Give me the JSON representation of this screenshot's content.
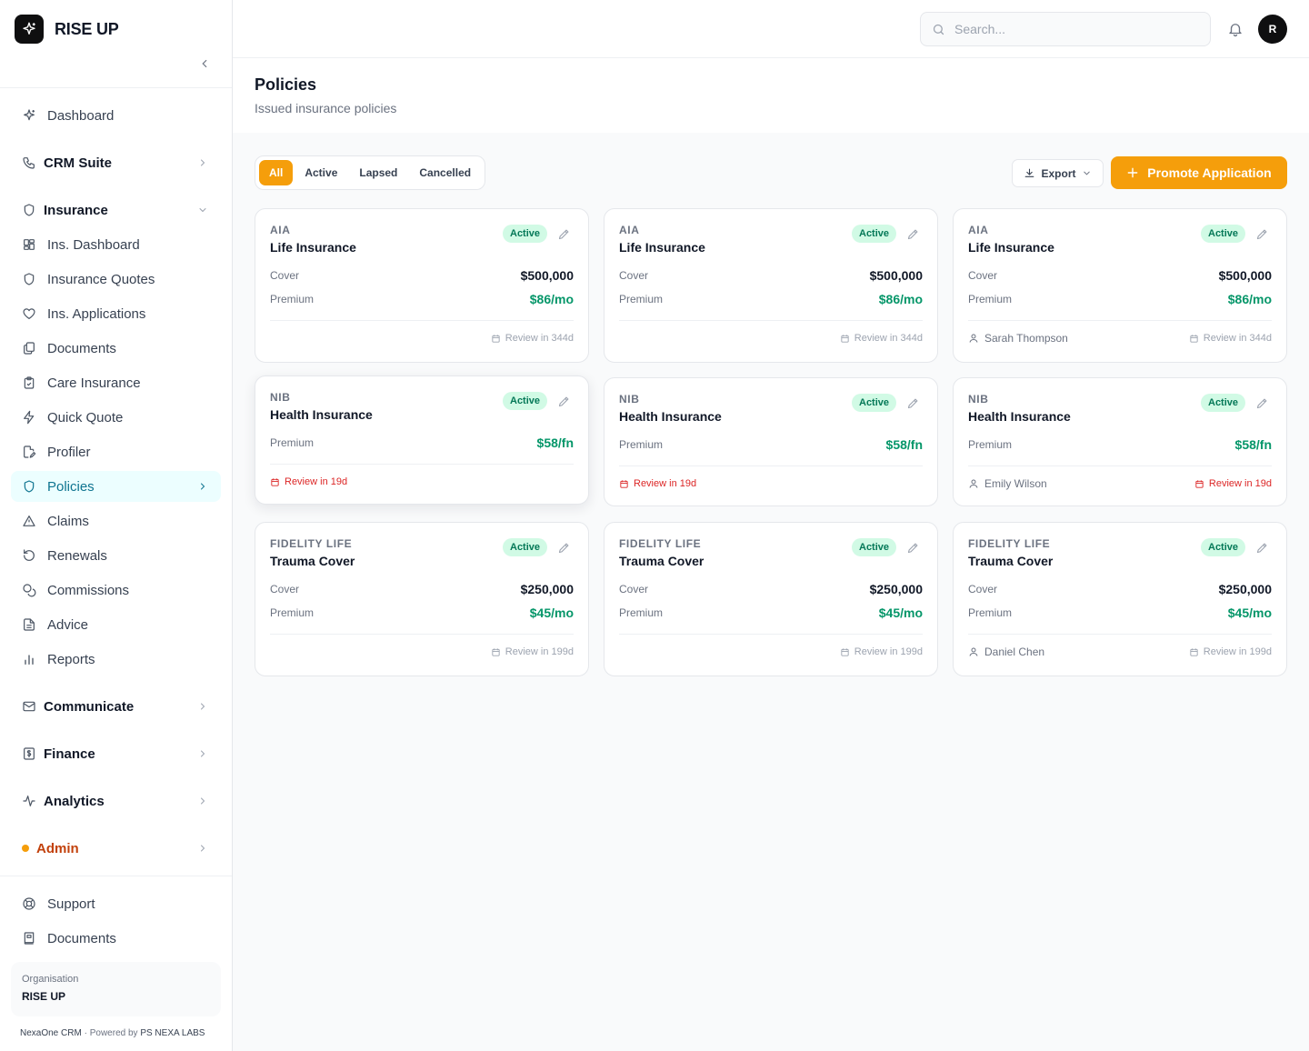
{
  "brand": {
    "name": "RISE UP"
  },
  "sidebar": {
    "items": [
      {
        "label": "Dashboard",
        "icon": "sparkles-icon"
      },
      {
        "label": "CRM Suite",
        "icon": "phone-icon"
      },
      {
        "label": "Insurance",
        "icon": "shield-icon"
      },
      {
        "label": "Ins. Dashboard",
        "icon": "grid-icon"
      },
      {
        "label": "Insurance Quotes",
        "icon": "shield-icon"
      },
      {
        "label": "Ins. Applications",
        "icon": "heart-icon"
      },
      {
        "label": "Documents",
        "icon": "files-icon"
      },
      {
        "label": "Care Insurance",
        "icon": "clipboard-icon"
      },
      {
        "label": "Quick Quote",
        "icon": "bolt-icon"
      },
      {
        "label": "Profiler",
        "icon": "file-edit-icon"
      },
      {
        "label": "Policies",
        "icon": "shield-icon"
      },
      {
        "label": "Claims",
        "icon": "alert-triangle-icon"
      },
      {
        "label": "Renewals",
        "icon": "refresh-icon"
      },
      {
        "label": "Commissions",
        "icon": "coins-icon"
      },
      {
        "label": "Advice",
        "icon": "document-icon"
      },
      {
        "label": "Reports",
        "icon": "bar-chart-icon"
      },
      {
        "label": "Communicate",
        "icon": "mail-icon"
      },
      {
        "label": "Finance",
        "icon": "dollar-file-icon"
      },
      {
        "label": "Analytics",
        "icon": "activity-icon"
      },
      {
        "label": "Admin",
        "icon": "dot"
      }
    ],
    "bottom": [
      {
        "label": "Support",
        "icon": "lifebuoy-icon"
      },
      {
        "label": "Documents",
        "icon": "book-icon"
      }
    ],
    "org_label": "Organisation",
    "org_name": "RISE UP",
    "footer_app": "NexaOne CRM",
    "footer_sep": "·",
    "footer_powered": "Powered by",
    "footer_company": "PS NEXA LABS"
  },
  "topbar": {
    "search_placeholder": "Search...",
    "avatar_initial": "R"
  },
  "page": {
    "title": "Policies",
    "subtitle": "Issued insurance policies"
  },
  "filters": {
    "tabs": [
      "All",
      "Active",
      "Lapsed",
      "Cancelled"
    ],
    "selected": "All"
  },
  "toolbar": {
    "export_label": "Export",
    "promote_label": "Promote Application"
  },
  "labels": {
    "cover": "Cover",
    "premium": "Premium"
  },
  "colors": {
    "accent": "#f59e0b",
    "active_nav": "#0e7490",
    "positive": "#059669",
    "urgent": "#dc2626",
    "badge_bg": "#d1fae5"
  },
  "policies": [
    {
      "insurer": "AIA",
      "product": "Life Insurance",
      "status": "Active",
      "cover": "$500,000",
      "premium": "$86/mo",
      "client": "",
      "review": "Review in 344d",
      "urgent": false
    },
    {
      "insurer": "AIA",
      "product": "Life Insurance",
      "status": "Active",
      "cover": "$500,000",
      "premium": "$86/mo",
      "client": "",
      "review": "Review in 344d",
      "urgent": false
    },
    {
      "insurer": "AIA",
      "product": "Life Insurance",
      "status": "Active",
      "cover": "$500,000",
      "premium": "$86/mo",
      "client": "Sarah Thompson",
      "review": "Review in 344d",
      "urgent": false
    },
    {
      "insurer": "NIB",
      "product": "Health Insurance",
      "status": "Active",
      "cover": "",
      "premium": "$58/fn",
      "client": "",
      "review": "Review in 19d",
      "urgent": true
    },
    {
      "insurer": "NIB",
      "product": "Health Insurance",
      "status": "Active",
      "cover": "",
      "premium": "$58/fn",
      "client": "",
      "review": "Review in 19d",
      "urgent": true
    },
    {
      "insurer": "NIB",
      "product": "Health Insurance",
      "status": "Active",
      "cover": "",
      "premium": "$58/fn",
      "client": "Emily Wilson",
      "review": "Review in 19d",
      "urgent": true
    },
    {
      "insurer": "FIDELITY LIFE",
      "product": "Trauma Cover",
      "status": "Active",
      "cover": "$250,000",
      "premium": "$45/mo",
      "client": "",
      "review": "Review in 199d",
      "urgent": false
    },
    {
      "insurer": "FIDELITY LIFE",
      "product": "Trauma Cover",
      "status": "Active",
      "cover": "$250,000",
      "premium": "$45/mo",
      "client": "",
      "review": "Review in 199d",
      "urgent": false
    },
    {
      "insurer": "FIDELITY LIFE",
      "product": "Trauma Cover",
      "status": "Active",
      "cover": "$250,000",
      "premium": "$45/mo",
      "client": "Daniel Chen",
      "review": "Review in 199d",
      "urgent": false
    }
  ]
}
